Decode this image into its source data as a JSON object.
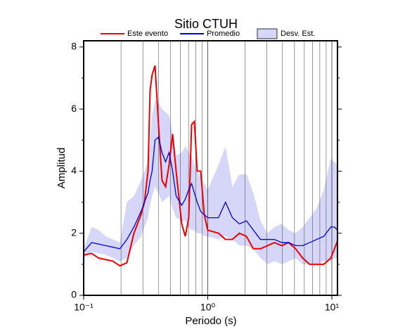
{
  "chart_data": {
    "type": "line",
    "title": "Sitio CTUH",
    "x_label": "Periodo (s)",
    "y_label": "Amplitud",
    "x_scale": "log",
    "grid": true,
    "xlim": [
      0.1,
      11.1
    ],
    "ylim": [
      0,
      8.2
    ],
    "xticks": [
      {
        "value": 0.1,
        "label": "10⁻¹"
      },
      {
        "value": 1,
        "label": "10⁰"
      },
      {
        "value": 10,
        "label": "10¹"
      }
    ],
    "xminorticks": [
      0.2,
      0.3,
      0.4,
      0.5,
      0.6,
      0.7,
      0.8,
      0.9,
      2,
      3,
      4,
      5,
      6,
      7,
      8,
      9
    ],
    "yticks": [
      0,
      2,
      4,
      6,
      8
    ],
    "yminorticks": [
      1,
      3,
      5,
      7
    ],
    "x": [
      0.1,
      0.116,
      0.132,
      0.151,
      0.172,
      0.196,
      0.223,
      0.254,
      0.29,
      0.309,
      0.33,
      0.343,
      0.356,
      0.376,
      0.401,
      0.428,
      0.457,
      0.488,
      0.521,
      0.556,
      0.617,
      0.659,
      0.703,
      0.741,
      0.78,
      0.822,
      0.877,
      0.937,
      1.0,
      1.22,
      1.39,
      1.58,
      1.8,
      2.05,
      2.33,
      2.66,
      3.03,
      3.45,
      3.94,
      4.48,
      5.11,
      5.82,
      6.63,
      7.55,
      8.61,
      9.81,
      10.5,
      11.1
    ],
    "band": {
      "name": "Desv. Est.",
      "color": "#d6d6f8",
      "lower": [
        1.2,
        1.4,
        1.35,
        1.3,
        1.2,
        1.1,
        1.2,
        1.6,
        1.9,
        2.2,
        2.5,
        2.9,
        3.2,
        3.5,
        3.3,
        3.0,
        3.1,
        3.2,
        2.8,
        2.5,
        2.4,
        2.4,
        2.2,
        2.1,
        2.1,
        2.0,
        2.0,
        1.9,
        1.9,
        1.8,
        1.9,
        1.8,
        1.6,
        1.6,
        1.5,
        1.2,
        1.0,
        1.1,
        1.0,
        1.1,
        1.2,
        1.0,
        1.0,
        1.0,
        1.1,
        1.1,
        1.2,
        1.2
      ],
      "upper": [
        1.5,
        2.2,
        2.1,
        1.9,
        1.8,
        1.7,
        3.0,
        3.2,
        3.7,
        4.0,
        4.3,
        5.0,
        5.8,
        6.3,
        6.2,
        6.0,
        5.9,
        5.8,
        5.2,
        4.5,
        4.6,
        4.8,
        4.6,
        4.5,
        4.2,
        4.0,
        3.8,
        3.6,
        3.4,
        4.2,
        4.8,
        3.5,
        3.9,
        3.9,
        3.3,
        2.4,
        2.0,
        2.2,
        2.3,
        2.1,
        2.0,
        2.2,
        2.5,
        2.8,
        3.4,
        4.4,
        4.3,
        4.2
      ]
    },
    "series": [
      {
        "name": "Este evento",
        "color": "#ee0000",
        "values": [
          1.3,
          1.35,
          1.2,
          1.15,
          1.1,
          0.95,
          1.05,
          2.0,
          2.6,
          3.0,
          4.0,
          6.6,
          7.1,
          7.4,
          5.5,
          3.7,
          3.5,
          4.2,
          5.2,
          4.0,
          2.3,
          1.9,
          2.5,
          5.5,
          5.6,
          4.0,
          4.0,
          2.6,
          2.1,
          2.0,
          1.8,
          1.8,
          2.0,
          1.9,
          1.5,
          1.5,
          1.6,
          1.7,
          1.6,
          1.7,
          1.5,
          1.2,
          1.0,
          1.0,
          1.0,
          1.2,
          1.5,
          1.75
        ]
      },
      {
        "name": "Promedio",
        "color": "#0000dd",
        "values": [
          1.4,
          1.7,
          1.65,
          1.6,
          1.55,
          1.5,
          1.8,
          2.2,
          2.7,
          3.0,
          3.3,
          3.7,
          4.0,
          5.0,
          5.1,
          4.6,
          4.3,
          4.6,
          4.0,
          3.2,
          2.9,
          3.1,
          3.4,
          3.6,
          3.3,
          3.0,
          2.7,
          2.6,
          2.5,
          2.5,
          3.0,
          2.5,
          2.3,
          2.4,
          2.1,
          1.8,
          1.8,
          1.8,
          1.7,
          1.7,
          1.6,
          1.6,
          1.7,
          1.8,
          1.9,
          2.2,
          2.2,
          2.1
        ]
      }
    ]
  }
}
